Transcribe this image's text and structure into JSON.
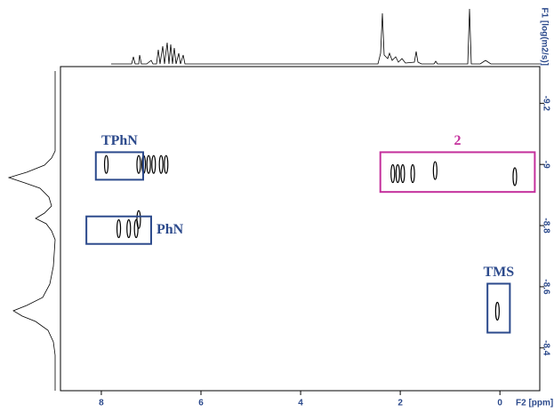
{
  "chart_data": {
    "type": "dosy",
    "x_label": "F2 [ppm]",
    "y_label": "F1 [log(m2/s)]",
    "xlim": [
      8.82,
      -0.8
    ],
    "xticks": [
      8,
      6,
      4,
      2,
      0
    ],
    "ylim": [
      -9.32,
      -8.26
    ],
    "yticks": [
      -9.2,
      -9.0,
      -8.8,
      -8.6,
      -8.4
    ],
    "peak_color": "#000000",
    "peaks": {
      "x": [
        7.9,
        7.25,
        7.15,
        7.05,
        6.95,
        6.8,
        6.7,
        7.65,
        7.45,
        7.3,
        7.25,
        2.15,
        2.05,
        1.95,
        1.75,
        1.3,
        -0.3,
        0.05
      ],
      "y": [
        -9.0,
        -9.0,
        -9.0,
        -9.0,
        -9.0,
        -9.0,
        -9.0,
        -8.79,
        -8.79,
        -8.79,
        -8.82,
        -8.97,
        -8.97,
        -8.97,
        -8.97,
        -8.98,
        -8.96,
        -8.52
      ]
    },
    "annotations": [
      {
        "text": "TPhN",
        "xrange": [
          8.11,
          7.16
        ],
        "yrange": [
          -9.04,
          -8.95
        ],
        "color": "#2c4a8c"
      },
      {
        "text": "PhN",
        "xrange": [
          8.3,
          7.0
        ],
        "yrange": [
          -8.83,
          -8.74
        ],
        "color": "#2c4a8c"
      },
      {
        "text": "2",
        "xrange": [
          2.4,
          -0.7
        ],
        "yrange": [
          -9.04,
          -8.91
        ],
        "color": "#c4309c"
      },
      {
        "text": "TMS",
        "xrange": [
          0.25,
          -0.2
        ],
        "yrange": [
          -8.61,
          -8.45
        ],
        "color": "#2c4a8c"
      }
    ]
  }
}
